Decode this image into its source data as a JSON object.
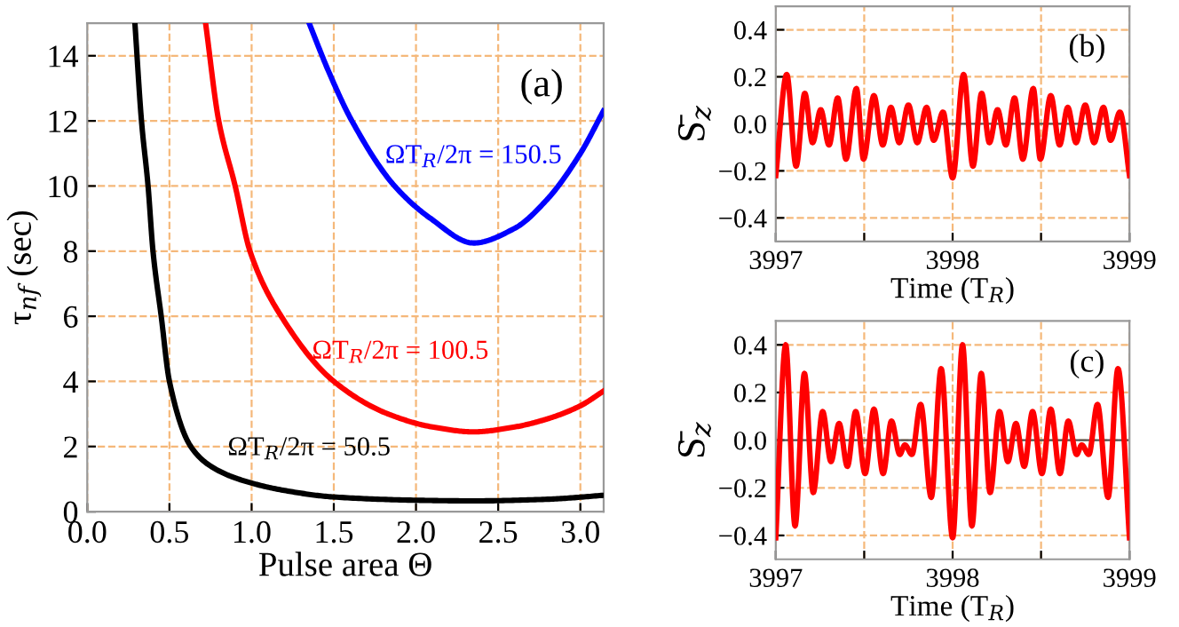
{
  "chart_data": [
    {
      "type": "line",
      "xlabel": "Pulse area Θ",
      "ylabel": "τ$_{nf}$ (sec)",
      "xlim": [
        0,
        3.1416
      ],
      "ylim": [
        0,
        15
      ],
      "xticks": [
        {
          "value": 0,
          "label": "0.0"
        },
        0.5,
        {
          "value": 1,
          "label": "1.0"
        },
        1.5,
        {
          "value": 2,
          "label": "2.0"
        },
        2.5,
        {
          "value": 3,
          "label": "3.0"
        }
      ],
      "yticks": [
        0,
        2,
        4,
        6,
        8,
        10,
        12,
        14
      ],
      "grid": true,
      "series": [
        {
          "name": "ΩT$_{R}$/2π = 50.5",
          "color": "#000000",
          "x": [
            0.29,
            0.33,
            0.37,
            0.4,
            0.45,
            0.5,
            0.63,
            0.75,
            0.92,
            1.2,
            1.5,
            2.0,
            2.35,
            2.8,
            3.14
          ],
          "values": [
            15,
            12,
            10,
            8,
            6,
            4,
            2,
            1.4,
            1.0,
            0.65,
            0.45,
            0.35,
            0.33,
            0.38,
            0.5
          ]
        },
        {
          "name": "ΩT$_{R}$/2π = 100.5",
          "color": "#ff0000",
          "x": [
            0.72,
            0.8,
            0.9,
            0.99,
            1.18,
            1.5,
            1.83,
            2.1,
            2.35,
            2.6,
            2.8,
            3.0,
            3.14
          ],
          "values": [
            15,
            12,
            10,
            8,
            6,
            4,
            3,
            2.6,
            2.45,
            2.6,
            2.85,
            3.25,
            3.7
          ]
        },
        {
          "name": "ΩT$_{R}$/2π = 150.5",
          "color": "#0000ff",
          "x": [
            1.35,
            1.47,
            1.61,
            1.87,
            2.09,
            2.35,
            2.6,
            2.8,
            3.0,
            3.14
          ],
          "values": [
            15,
            13.5,
            12,
            10,
            9,
            8.25,
            8.7,
            9.6,
            11,
            12.3
          ]
        }
      ],
      "annotations": [
        "(a)"
      ]
    },
    {
      "type": "line",
      "xlabel": "Time (T$_{R}$)",
      "ylabel": "S̄$_{z}$",
      "xlim": [
        3997,
        3999
      ],
      "ylim": [
        -0.5,
        0.5
      ],
      "xticks": [
        3997,
        {
          "value": 3997.5,
          "label": null
        },
        3998,
        {
          "value": 3998.5,
          "label": null
        },
        3999
      ],
      "yticks": [
        {
          "value": -0.4,
          "label": "−0.4"
        },
        {
          "value": -0.2,
          "label": "−0.2"
        },
        {
          "value": 0,
          "label": "0.0"
        },
        0.2,
        0.4
      ],
      "grid": true,
      "ref_lines": [
        {
          "axis": "y",
          "value": 0,
          "color": "#555555",
          "line_style": "solid"
        }
      ],
      "series": [
        {
          "color": "#ff0000",
          "x": [
            3997.0,
            3997.062,
            3997.115,
            3997.164,
            3997.208,
            3997.254,
            3997.301,
            3997.35,
            3997.397,
            3997.456,
            3997.496,
            3997.555,
            3997.605,
            3997.651,
            3997.698,
            3997.75,
            3997.8,
            3997.853,
            3997.893,
            3997.946,
            3998.0,
            3998.062,
            3998.115,
            3998.164,
            3998.208,
            3998.254,
            3998.301,
            3998.35,
            3998.397,
            3998.456,
            3998.496,
            3998.555,
            3998.605,
            3998.651,
            3998.698,
            3998.75,
            3998.8,
            3998.853,
            3998.893,
            3998.946,
            3999.0
          ],
          "values": [
            -0.22,
            0.21,
            -0.18,
            0.13,
            -0.08,
            0.06,
            -0.09,
            0.11,
            -0.15,
            0.15,
            -0.15,
            0.12,
            -0.09,
            0.07,
            -0.08,
            0.08,
            -0.08,
            0.07,
            -0.07,
            0.05,
            -0.23,
            0.21,
            -0.18,
            0.13,
            -0.08,
            0.06,
            -0.09,
            0.11,
            -0.15,
            0.15,
            -0.15,
            0.12,
            -0.09,
            0.07,
            -0.08,
            0.08,
            -0.08,
            0.07,
            -0.07,
            0.05,
            -0.22
          ]
        }
      ],
      "annotations": [
        "(b)"
      ]
    },
    {
      "type": "line",
      "xlabel": "Time (T$_{R}$)",
      "ylabel": "S̄$_{z}$",
      "xlim": [
        3997,
        3999
      ],
      "ylim": [
        -0.5,
        0.5
      ],
      "xticks": [
        3997,
        {
          "value": 3997.5,
          "label": null
        },
        3998,
        {
          "value": 3998.5,
          "label": null
        },
        3999
      ],
      "yticks": [
        {
          "value": -0.4,
          "label": "−0.4"
        },
        {
          "value": -0.2,
          "label": "−0.2"
        },
        {
          "value": 0,
          "label": "0.0"
        },
        0.2,
        0.4
      ],
      "grid": true,
      "ref_lines": [
        {
          "axis": "y",
          "value": 0,
          "color": "#555555",
          "line_style": "solid"
        }
      ],
      "series": [
        {
          "color": "#ff0000",
          "x": [
            3997.0,
            3997.056,
            3997.109,
            3997.162,
            3997.212,
            3997.265,
            3997.312,
            3997.358,
            3997.405,
            3997.452,
            3997.505,
            3997.555,
            3997.607,
            3997.654,
            3997.701,
            3997.73,
            3997.77,
            3997.819,
            3997.879,
            3997.935,
            3998.0,
            3998.056,
            3998.109,
            3998.162,
            3998.212,
            3998.265,
            3998.312,
            3998.358,
            3998.405,
            3998.452,
            3998.505,
            3998.555,
            3998.607,
            3998.654,
            3998.701,
            3998.73,
            3998.77,
            3998.819,
            3998.879,
            3998.935,
            3999.0
          ],
          "values": [
            -0.41,
            0.4,
            -0.36,
            0.28,
            -0.22,
            0.12,
            -0.09,
            0.07,
            -0.11,
            0.12,
            -0.14,
            0.13,
            -0.14,
            0.08,
            -0.06,
            -0.02,
            -0.06,
            0.15,
            -0.24,
            0.3,
            -0.41,
            0.4,
            -0.36,
            0.28,
            -0.22,
            0.12,
            -0.09,
            0.07,
            -0.11,
            0.12,
            -0.14,
            0.13,
            -0.14,
            0.08,
            -0.06,
            -0.02,
            -0.06,
            0.15,
            -0.24,
            0.3,
            -0.41
          ]
        }
      ],
      "annotations": [
        "(c)"
      ]
    }
  ]
}
